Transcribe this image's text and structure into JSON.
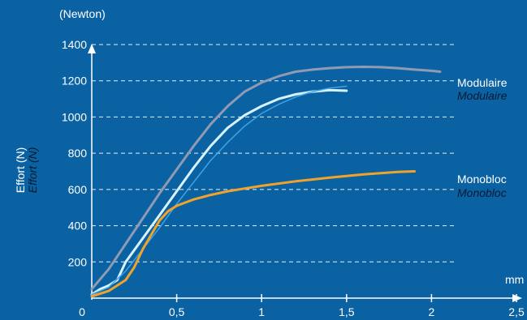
{
  "chart_data": {
    "type": "line",
    "y_unit_label": "(Newton)",
    "ylabel": "Effort (N)",
    "ylabel_italic": "Effort (N)",
    "xlabel": "mm",
    "xlim": [
      0,
      2.5
    ],
    "ylim": [
      0,
      1400
    ],
    "x_ticks": [
      {
        "value": 0,
        "label": "0"
      },
      {
        "value": 0.5,
        "label": "0,5"
      },
      {
        "value": 1,
        "label": "1"
      },
      {
        "value": 1.5,
        "label": "1,5"
      },
      {
        "value": 2,
        "label": "2"
      },
      {
        "value": 2.5,
        "label": "2,5"
      }
    ],
    "y_ticks": [
      {
        "value": 200,
        "label": "200"
      },
      {
        "value": 400,
        "label": "400"
      },
      {
        "value": 600,
        "label": "600"
      },
      {
        "value": 800,
        "label": "800"
      },
      {
        "value": 1000,
        "label": "1000"
      },
      {
        "value": 1200,
        "label": "1200"
      },
      {
        "value": 1400,
        "label": "1400"
      }
    ],
    "grid": true,
    "series": [
      {
        "color": "#8f9bb3",
        "x": [
          0,
          0.1,
          0.2,
          0.3,
          0.4,
          0.5,
          0.6,
          0.7,
          0.8,
          0.9,
          1.0,
          1.1,
          1.2,
          1.3,
          1.4,
          1.5,
          1.6,
          1.7,
          1.8,
          1.9,
          2.0,
          2.05
        ],
        "y": [
          50,
          160,
          300,
          440,
          580,
          710,
          840,
          960,
          1060,
          1140,
          1190,
          1225,
          1250,
          1262,
          1270,
          1275,
          1277,
          1275,
          1270,
          1262,
          1255,
          1250
        ]
      },
      {
        "color": "#d7f3ff",
        "x": [
          0,
          0.05,
          0.1,
          0.15,
          0.2,
          0.3,
          0.4,
          0.5,
          0.6,
          0.7,
          0.8,
          0.9,
          1.0,
          1.1,
          1.2,
          1.3,
          1.4,
          1.5
        ],
        "y": [
          20,
          50,
          70,
          100,
          200,
          330,
          460,
          590,
          720,
          840,
          940,
          1010,
          1060,
          1100,
          1125,
          1140,
          1148,
          1145
        ]
      },
      {
        "color": "#3da3e6",
        "x": [
          0,
          0.1,
          0.2,
          0.3,
          0.4,
          0.5,
          0.6,
          0.7,
          0.8,
          0.9,
          1.0,
          1.1,
          1.2,
          1.3,
          1.4,
          1.5
        ],
        "y": [
          20,
          60,
          150,
          270,
          390,
          520,
          640,
          760,
          860,
          950,
          1020,
          1070,
          1110,
          1140,
          1160,
          1170
        ]
      },
      {
        "color": "#f0a32b",
        "x": [
          0,
          0.1,
          0.2,
          0.25,
          0.3,
          0.4,
          0.45,
          0.5,
          0.6,
          0.7,
          0.8,
          0.9,
          1.0,
          1.2,
          1.4,
          1.6,
          1.8,
          1.9
        ],
        "y": [
          10,
          40,
          100,
          170,
          270,
          430,
          480,
          510,
          545,
          570,
          590,
          605,
          620,
          645,
          665,
          683,
          697,
          700
        ]
      }
    ],
    "annotations": [
      {
        "text": "Modulaire",
        "italic": "Modulaire",
        "y": 1200
      },
      {
        "text": "Monobloc",
        "italic": "Monobloc",
        "y": 660
      }
    ]
  }
}
